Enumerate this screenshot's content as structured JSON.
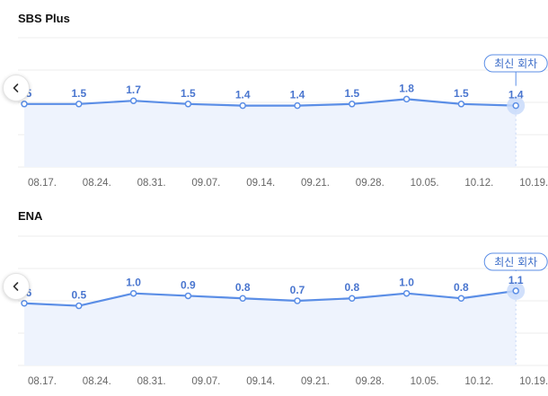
{
  "charts": [
    {
      "title": "SBS Plus",
      "badge": "최신 회차",
      "chart_data": {
        "type": "line",
        "title": "SBS Plus",
        "categories": [
          "08.17.",
          "08.24.",
          "08.31.",
          "09.07.",
          "09.14.",
          "09.21.",
          "09.28.",
          "10.05.",
          "10.12.",
          "10.19."
        ],
        "values": [
          1.5,
          1.5,
          1.7,
          1.5,
          1.4,
          1.4,
          1.5,
          1.8,
          1.5,
          1.4
        ],
        "labels": [
          "1.5",
          "1.5",
          "1.7",
          "1.5",
          "1.4",
          "1.4",
          "1.5",
          "1.8",
          "1.5",
          "1.4"
        ],
        "ylim": [
          -2.4,
          5.6
        ],
        "grid": true,
        "latest_index": 9
      }
    },
    {
      "title": "ENA",
      "badge": "최신 회차",
      "chart_data": {
        "type": "line",
        "title": "ENA",
        "categories": [
          "08.17.",
          "08.24.",
          "08.31.",
          "09.07.",
          "09.14.",
          "09.21.",
          "09.28.",
          "10.05.",
          "10.12.",
          "10.19."
        ],
        "values": [
          0.6,
          0.5,
          1.0,
          0.9,
          0.8,
          0.7,
          0.8,
          1.0,
          0.8,
          1.1
        ],
        "labels": [
          "0.6",
          "0.5",
          "1.0",
          "0.9",
          "0.8",
          "0.7",
          "0.8",
          "1.0",
          "0.8",
          "1.1"
        ],
        "ylim": [
          -1.9,
          3.3
        ],
        "grid": true,
        "latest_index": 9
      }
    }
  ],
  "colors": {
    "line": "#5b8ee6",
    "area": "#eef3fd",
    "label": "#4a76cf",
    "grid": "#eeeeee",
    "tick": "#666666",
    "badge_border": "#5b8ee6",
    "badge_text": "#3b6cc8"
  },
  "icons": {
    "prev": "chevron-left-icon"
  }
}
